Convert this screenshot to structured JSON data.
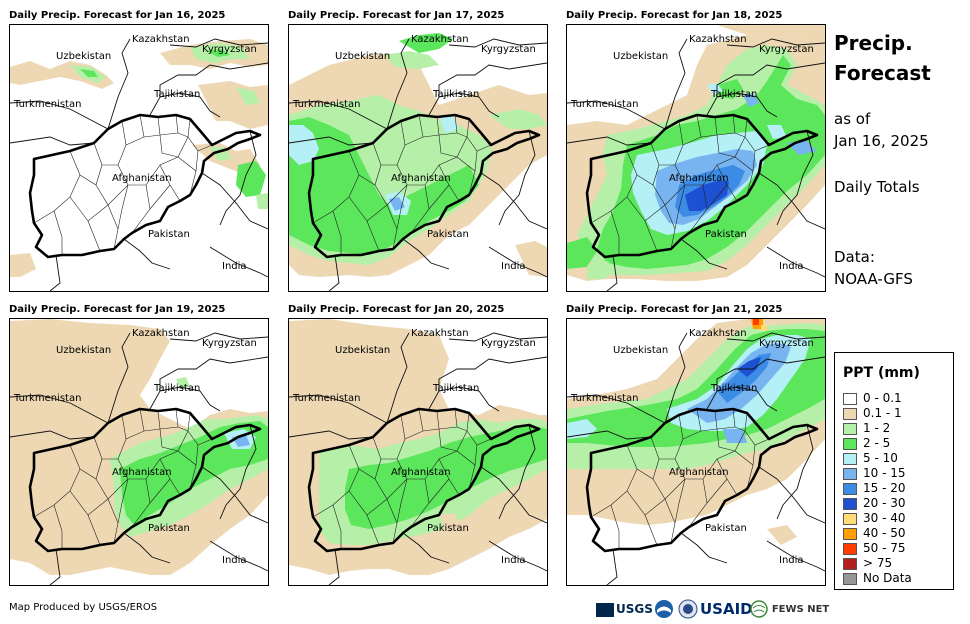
{
  "panels": [
    {
      "title": "Daily Precip. Forecast for Jan 16, 2025",
      "day": 0
    },
    {
      "title": "Daily Precip. Forecast for Jan 17, 2025",
      "day": 1
    },
    {
      "title": "Daily Precip. Forecast for Jan 18, 2025",
      "day": 2
    },
    {
      "title": "Daily Precip. Forecast for Jan 19, 2025",
      "day": 3
    },
    {
      "title": "Daily Precip. Forecast for Jan 20, 2025",
      "day": 4
    },
    {
      "title": "Daily Precip. Forecast for Jan 21, 2025",
      "day": 5
    }
  ],
  "map_labels": {
    "uzbekistan": "Uzbekistan",
    "kazakhstan": "Kazakhstan",
    "kyrgyzstan": "Kyrgyzstan",
    "tajikistan": "Tajikistan",
    "turkmenistan": "Turkmenistan",
    "afghanistan": "Afghanistan",
    "pakistan": "Pakistan",
    "india": "India"
  },
  "side": {
    "title_line1": "Precip.",
    "title_line2": "Forecast",
    "asof_line1": "as of",
    "asof_line2": "Jan 16, 2025",
    "daily": "Daily Totals",
    "data_line1": "Data:",
    "data_line2": "NOAA-GFS"
  },
  "legend": {
    "title": "PPT (mm)",
    "items": [
      {
        "label": "0 - 0.1",
        "color": "#ffffff"
      },
      {
        "label": "0.1 - 1",
        "color": "#eed8b4"
      },
      {
        "label": "1 - 2",
        "color": "#b6f0a8"
      },
      {
        "label": "2 - 5",
        "color": "#5ce65c"
      },
      {
        "label": "5 - 10",
        "color": "#b4f0f5"
      },
      {
        "label": "10 - 15",
        "color": "#78b4f0"
      },
      {
        "label": "15 - 20",
        "color": "#3c8ce6"
      },
      {
        "label": "20 - 30",
        "color": "#1e50d2"
      },
      {
        "label": "30 - 40",
        "color": "#ffdc78"
      },
      {
        "label": "40 - 50",
        "color": "#ffa000"
      },
      {
        "label": "50 - 75",
        "color": "#ff3c00"
      },
      {
        "label": "> 75",
        "color": "#b41e1e"
      },
      {
        "label": "No Data",
        "color": "#969696"
      }
    ]
  },
  "footer": {
    "credit": "Map Produced by USGS/EROS"
  },
  "logos": {
    "usgs": "USGS",
    "usaid": "USAID",
    "fewsnet": "FEWS NET"
  }
}
